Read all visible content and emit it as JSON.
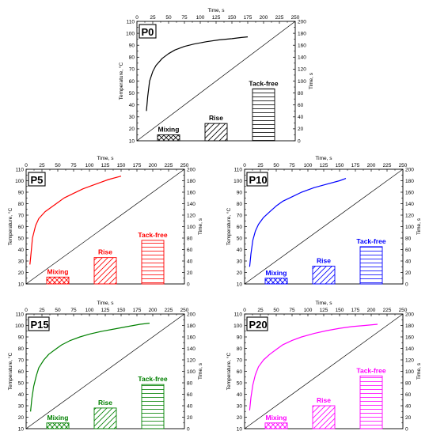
{
  "chart_data": [
    {
      "type": "line+bar",
      "panel_label": "P0",
      "xlabel": "Time, s",
      "ylabel": "Temperature, °C",
      "y2label": "Time, s",
      "xlim": [
        0,
        250
      ],
      "ylim": [
        10,
        110
      ],
      "y2lim": [
        0,
        200
      ],
      "x_ticks": [
        0,
        25,
        50,
        75,
        100,
        125,
        150,
        175,
        200,
        225,
        250
      ],
      "y_ticks": [
        10,
        20,
        30,
        40,
        50,
        60,
        70,
        80,
        90,
        100,
        110
      ],
      "y2_ticks": [
        0,
        20,
        40,
        60,
        80,
        100,
        120,
        140,
        160,
        180,
        200
      ],
      "color": "#000000",
      "curve": {
        "x": [
          15,
          17,
          20,
          25,
          30,
          40,
          50,
          60,
          75,
          90,
          110,
          130,
          150,
          165,
          175
        ],
        "y": [
          35,
          47,
          60,
          68,
          73,
          79,
          83,
          86,
          89,
          91,
          93,
          94.5,
          95.5,
          96.5,
          97
        ]
      },
      "bars": {
        "categories": [
          "Mixing",
          "Rise",
          "Tack-free"
        ],
        "values": [
          10,
          29,
          87
        ],
        "x_center": [
          50,
          125,
          200
        ],
        "width": 35,
        "hatch": [
          "cross",
          "diagonal",
          "horizontal"
        ]
      }
    },
    {
      "type": "line+bar",
      "panel_label": "P5",
      "xlabel": "Time, s",
      "ylabel": "Temperature, °C",
      "y2label": "Time, s",
      "xlim": [
        0,
        250
      ],
      "ylim": [
        10,
        110
      ],
      "y2lim": [
        0,
        200
      ],
      "x_ticks": [
        0,
        25,
        50,
        75,
        100,
        125,
        150,
        175,
        200,
        225,
        250
      ],
      "y_ticks": [
        10,
        20,
        30,
        40,
        50,
        60,
        70,
        80,
        90,
        100,
        110
      ],
      "y2_ticks": [
        0,
        20,
        40,
        60,
        80,
        100,
        120,
        140,
        160,
        180,
        200
      ],
      "color": "#ff0000",
      "curve": {
        "x": [
          6,
          8,
          10,
          15,
          20,
          30,
          40,
          50,
          60,
          75,
          90,
          110,
          130,
          150
        ],
        "y": [
          27,
          38,
          50,
          61,
          67,
          73,
          77,
          81,
          85,
          89,
          93,
          97,
          101,
          104
        ]
      },
      "bars": {
        "categories": [
          "Mixing",
          "Rise",
          "Tack-free"
        ],
        "values": [
          12,
          46,
          76
        ],
        "x_center": [
          50,
          125,
          200
        ],
        "width": 35,
        "hatch": [
          "cross",
          "diagonal",
          "horizontal"
        ]
      }
    },
    {
      "type": "line+bar",
      "panel_label": "P10",
      "xlabel": "Time, s",
      "ylabel": "Temperature, °C",
      "y2label": "Time, s",
      "xlim": [
        0,
        250
      ],
      "ylim": [
        10,
        110
      ],
      "y2lim": [
        0,
        200
      ],
      "x_ticks": [
        0,
        25,
        50,
        75,
        100,
        125,
        150,
        175,
        200,
        225,
        250
      ],
      "y_ticks": [
        10,
        20,
        30,
        40,
        50,
        60,
        70,
        80,
        90,
        100,
        110
      ],
      "y2_ticks": [
        0,
        20,
        40,
        60,
        80,
        100,
        120,
        140,
        160,
        180,
        200
      ],
      "color": "#0000ff",
      "curve": {
        "x": [
          8,
          10,
          13,
          17,
          22,
          30,
          40,
          50,
          60,
          75,
          90,
          110,
          130,
          150,
          160
        ],
        "y": [
          25,
          36,
          48,
          56,
          62,
          68,
          73,
          78,
          82,
          86,
          90,
          94,
          97,
          100,
          102
        ]
      },
      "bars": {
        "categories": [
          "Mixing",
          "Rise",
          "Tack-free"
        ],
        "values": [
          10,
          31,
          65
        ],
        "x_center": [
          50,
          125,
          200
        ],
        "width": 35,
        "hatch": [
          "cross",
          "diagonal",
          "horizontal"
        ]
      }
    },
    {
      "type": "line+bar",
      "panel_label": "P15",
      "xlabel": "Time, s",
      "ylabel": "Temperature, °C",
      "y2label": "Time, s",
      "xlim": [
        0,
        250
      ],
      "ylim": [
        10,
        110
      ],
      "y2lim": [
        0,
        200
      ],
      "x_ticks": [
        0,
        25,
        50,
        75,
        100,
        125,
        150,
        175,
        200,
        225,
        250
      ],
      "y_ticks": [
        10,
        20,
        30,
        40,
        50,
        60,
        70,
        80,
        90,
        100,
        110
      ],
      "y2_ticks": [
        0,
        20,
        40,
        60,
        80,
        100,
        120,
        140,
        160,
        180,
        200
      ],
      "color": "#008000",
      "curve": {
        "x": [
          7,
          9,
          12,
          16,
          20,
          28,
          36,
          46,
          56,
          70,
          85,
          100,
          120,
          140,
          160,
          180,
          195
        ],
        "y": [
          25,
          36,
          47,
          56,
          63,
          70,
          75,
          79,
          83,
          87,
          90,
          92.5,
          95,
          97,
          99,
          101,
          102
        ]
      },
      "bars": {
        "categories": [
          "Mixing",
          "Rise",
          "Tack-free"
        ],
        "values": [
          10,
          36,
          77
        ],
        "x_center": [
          50,
          125,
          200
        ],
        "width": 35,
        "hatch": [
          "cross",
          "diagonal",
          "horizontal"
        ]
      }
    },
    {
      "type": "line+bar",
      "panel_label": "P20",
      "xlabel": "Time, s",
      "ylabel": "Temperature, °C",
      "y2label": "Time, s",
      "xlim": [
        0,
        250
      ],
      "ylim": [
        10,
        110
      ],
      "y2lim": [
        0,
        200
      ],
      "x_ticks": [
        0,
        25,
        50,
        75,
        100,
        125,
        150,
        175,
        200,
        225,
        250
      ],
      "y_ticks": [
        10,
        20,
        30,
        40,
        50,
        60,
        70,
        80,
        90,
        100,
        110
      ],
      "y2_ticks": [
        0,
        20,
        40,
        60,
        80,
        100,
        120,
        140,
        160,
        180,
        200
      ],
      "color": "#ff00ff",
      "curve": {
        "x": [
          8,
          10,
          13,
          17,
          22,
          30,
          40,
          50,
          60,
          75,
          90,
          110,
          130,
          150,
          170,
          190,
          210
        ],
        "y": [
          26,
          37,
          48,
          57,
          64,
          70,
          75,
          79,
          83,
          87,
          90,
          93,
          95.5,
          97.5,
          99,
          100,
          101
        ]
      },
      "bars": {
        "categories": [
          "Mixing",
          "Rise",
          "Tack-free"
        ],
        "values": [
          10,
          40,
          92
        ],
        "x_center": [
          50,
          125,
          200
        ],
        "width": 35,
        "hatch": [
          "cross",
          "diagonal",
          "horizontal"
        ]
      }
    }
  ]
}
